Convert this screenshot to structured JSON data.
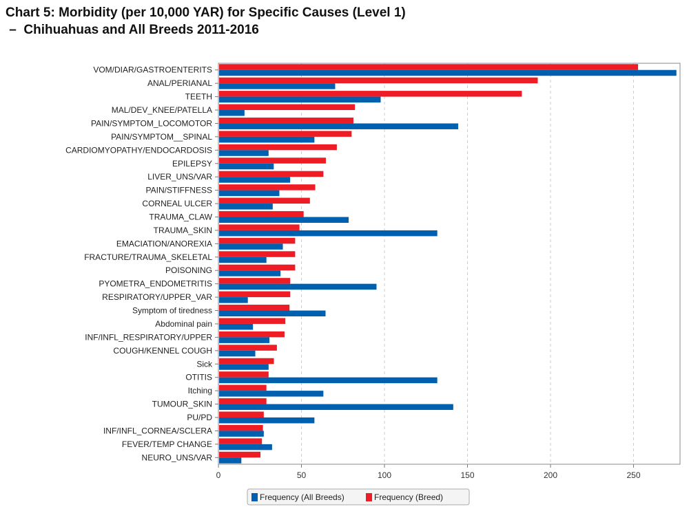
{
  "title_line1": "Chart 5: Morbidity (per 10,000 YAR) for Specific Causes (Level 1)",
  "title_line2": " –  Chihuahuas and All Breeds 2011-2016",
  "chart_data": {
    "type": "bar",
    "orientation": "horizontal",
    "title": "Chart 5: Morbidity (per 10,000 YAR) for Specific Causes (Level 1) – Chihuahuas and All Breeds 2011-2016",
    "xlabel": "",
    "ylabel": "",
    "xlim": [
      0,
      278
    ],
    "xticks": [
      0,
      50,
      100,
      150,
      200,
      250
    ],
    "grid": "vertical dashed",
    "legend_position": "bottom",
    "categories": [
      "VOM/DIAR/GASTROENTERITS",
      "ANAL/PERIANAL",
      "TEETH",
      "MAL/DEV_KNEE/PATELLA",
      "PAIN/SYMPTOM_LOCOMOTOR",
      "PAIN/SYMPTOM__SPINAL",
      "CARDIOMYOPATHY/ENDOCARDOSIS",
      "EPILEPSY",
      "LIVER_UNS/VAR",
      "PAIN/STIFFNESS",
      "CORNEAL ULCER",
      "TRAUMA_CLAW",
      "TRAUMA_SKIN",
      "EMACIATION/ANOREXIA",
      "FRACTURE/TRAUMA_SKELETAL",
      "POISONING",
      "PYOMETRA_ENDOMETRITIS",
      "RESPIRATORY/UPPER_VAR",
      "Symptom of tiredness",
      "Abdominal pain",
      "INF/INFL_RESPIRATORY/UPPER",
      "COUGH/KENNEL COUGH",
      "Sick",
      "OTITIS",
      "Itching",
      "TUMOUR_SKIN",
      "PU/PD",
      "INF/INFL_CORNEA/SCLERA",
      "FEVER/TEMP CHANGE",
      "NEURO_UNS/VAR"
    ],
    "series": [
      {
        "name": "Frequency (All Breeds)",
        "color": "#0060b0",
        "values": [
          275.4,
          69.9,
          97.3,
          15.3,
          144,
          57.4,
          29.8,
          32.9,
          42.8,
          36.3,
          32.3,
          78,
          131.4,
          38.4,
          28.5,
          37,
          94.8,
          17.3,
          64.1,
          20.4,
          30.3,
          21.8,
          29.8,
          131.4,
          62.8,
          141,
          57.4,
          26.9,
          31.9,
          13.4
        ]
      },
      {
        "name": "Frequency (Breed)",
        "color": "#ee1c25",
        "values": [
          252.3,
          191.9,
          182.3,
          81.8,
          80.9,
          79.8,
          70.9,
          64.3,
          62.8,
          57.9,
          54.7,
          50.9,
          48.4,
          45.8,
          45.8,
          45.8,
          42.8,
          42.8,
          42.4,
          39.9,
          39.4,
          34.8,
          33,
          29.8,
          28.5,
          28.5,
          26.9,
          26.4,
          25.8,
          24.9
        ]
      }
    ]
  }
}
